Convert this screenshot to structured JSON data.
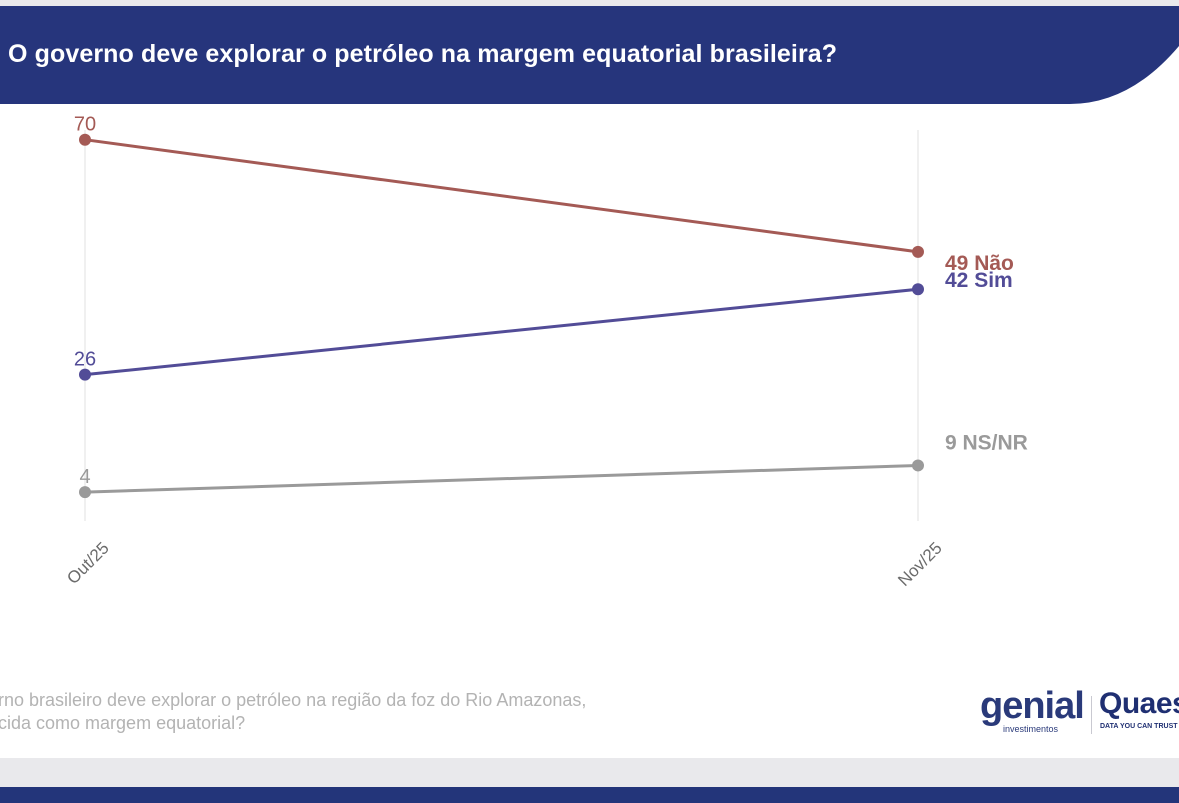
{
  "title": "O governo deve explorar o petróleo na margem equatorial brasileira?",
  "colors": {
    "header": "#26357c",
    "nao": "#a45a55",
    "sim": "#524c97",
    "nsnr": "#9a9a9a",
    "gridline": "#e6e6e6",
    "axis_text": "#6b6b6b"
  },
  "chart_data": {
    "type": "line",
    "title": "O governo deve explorar o petróleo na margem equatorial brasileira?",
    "categories": [
      "Out/25",
      "Nov/25"
    ],
    "xlabel": "",
    "ylabel": "",
    "ylim": [
      0,
      76
    ],
    "grid": "vertical",
    "legend": "end-labels",
    "series": [
      {
        "name": "Não",
        "key": "nao",
        "values": [
          70,
          49
        ],
        "end_label": "49 Não"
      },
      {
        "name": "Sim",
        "key": "sim",
        "values": [
          26,
          42
        ],
        "end_label": "42 Sim"
      },
      {
        "name": "NS/NR",
        "key": "nsnr",
        "values": [
          4,
          9
        ],
        "end_label": "9 NS/NR"
      }
    ],
    "start_labels": [
      "70",
      "26",
      "4"
    ]
  },
  "footnote": {
    "line1": "erno brasileiro deve explorar o petróleo na região da foz do Rio Amazonas,",
    "line2": "ecida como margem equatorial?"
  },
  "logos": {
    "genial": "genial",
    "genial_sub": "investimentos",
    "quaest": "Quaest",
    "quaest_sub": "DATA YOU CAN TRUST"
  }
}
